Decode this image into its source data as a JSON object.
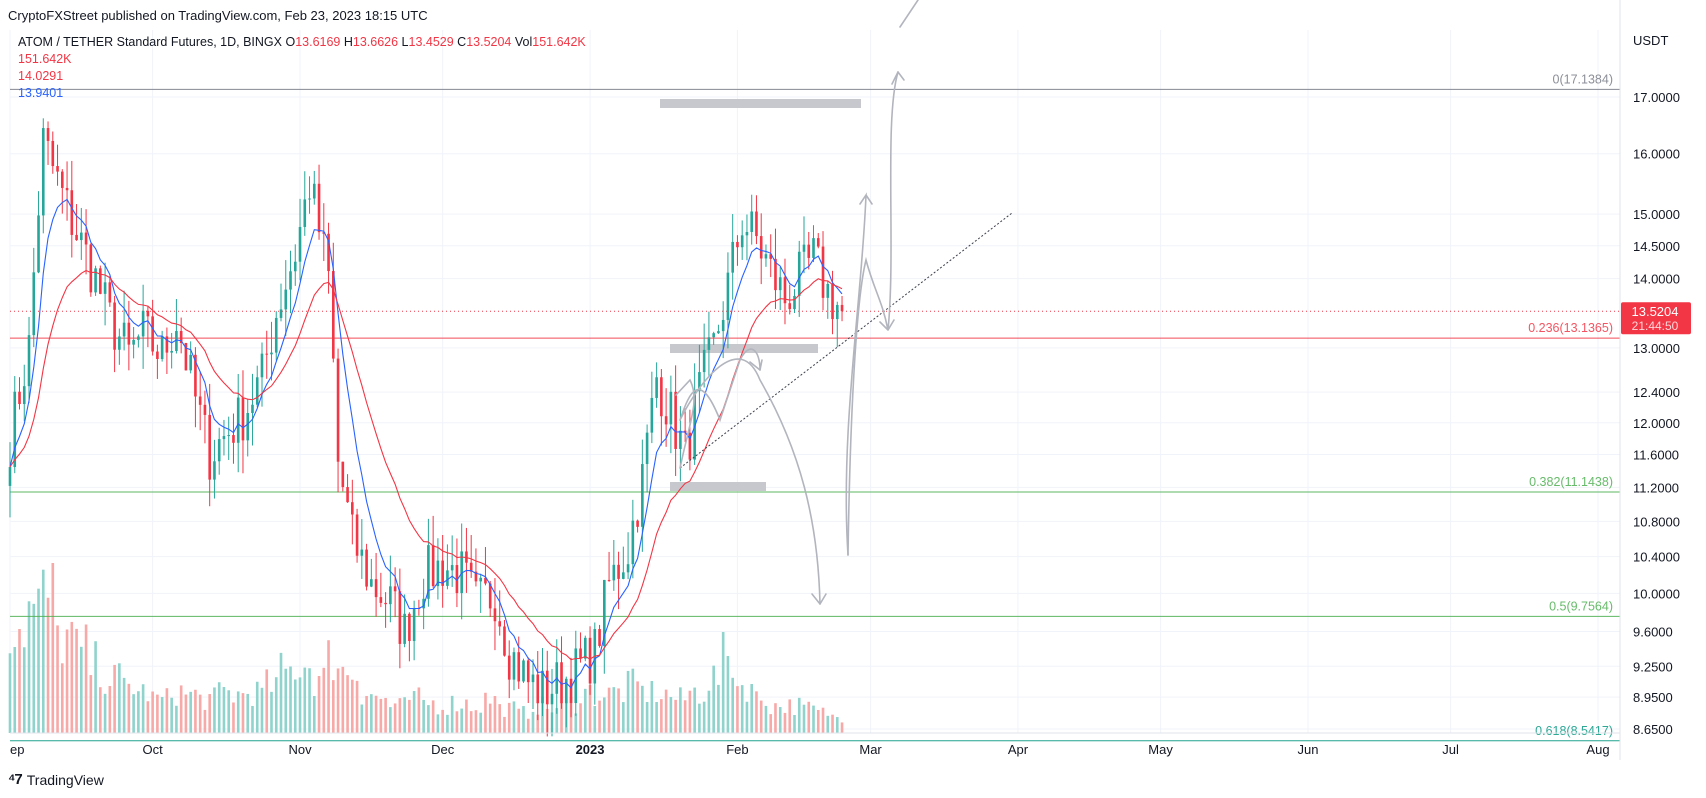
{
  "header": {
    "publisher_line": "CryptoFXStreet published on TradingView.com, Feb 23, 2023 18:15 UTC",
    "symbol": "ATOM / TETHER Standard Futures, 1D, BINGX",
    "ohlc": [
      {
        "k": "O",
        "v": "13.6169"
      },
      {
        "k": "H",
        "v": "13.6626"
      },
      {
        "k": "L",
        "v": "13.4529"
      },
      {
        "k": "C",
        "v": "13.5204"
      },
      {
        "k": "Vol",
        "v": "151.642K"
      }
    ],
    "legend_lines": [
      {
        "text": "151.642K",
        "color": "#f23645"
      },
      {
        "text": "14.0291",
        "color": "#f23645"
      },
      {
        "text": "13.9401",
        "color": "#2962ff"
      }
    ]
  },
  "footer": {
    "brand": "TradingView"
  },
  "colors": {
    "up": "#26a69a",
    "down": "#f23645",
    "vol_up": "#8fd3cc",
    "vol_down": "#f7a9a7",
    "ema_fast": "#2962ff",
    "ema_slow": "#f23645",
    "grid": "#f0f3fa",
    "text": "#131722",
    "fib_red": "#f23645",
    "fib_green": "#4caf50",
    "fib_teal": "#089981",
    "fib_gray": "#787b86",
    "drawing": "#b2b5be",
    "zone": "#c7c8cd"
  },
  "chart_data": {
    "type": "candlestick",
    "x_axis": {
      "labels": [
        "ep",
        "Oct",
        "Nov",
        "Dec",
        "2023",
        "Feb",
        "Mar",
        "Apr",
        "May",
        "Jun",
        "Jul",
        "Aug"
      ],
      "range": [
        "2022-09-01",
        "2023-08-01"
      ]
    },
    "y_axis": {
      "scale": "log",
      "unit_label": "USDT",
      "ticks": [
        17.0,
        16.0,
        15.0,
        14.5,
        14.0,
        13.0,
        12.4,
        12.0,
        11.6,
        11.2,
        10.8,
        10.4,
        10.0,
        9.6,
        9.25,
        8.95,
        8.65
      ],
      "tick_labels": [
        "17.0000",
        "16.0000",
        "15.0000",
        "14.5000",
        "14.0000",
        "13.0000",
        "12.4000",
        "12.0000",
        "11.6000",
        "11.2000",
        "10.8000",
        "10.4000",
        "10.0000",
        "9.6000",
        "9.2500",
        "8.9500",
        "8.6500"
      ],
      "range": [
        8.5,
        17.6
      ]
    },
    "last_price": {
      "value": "13.5204",
      "countdown": "21:44:50"
    },
    "series_close": {
      "name": "ATOM / TETHER Standard Futures",
      "dates": [
        "2022-09-01",
        "2022-09-05",
        "2022-09-08",
        "2022-09-12",
        "2022-09-15",
        "2022-09-19",
        "2022-09-22",
        "2022-09-26",
        "2022-09-29",
        "2022-10-03",
        "2022-10-06",
        "2022-10-10",
        "2022-10-13",
        "2022-10-17",
        "2022-10-20",
        "2022-10-24",
        "2022-10-27",
        "2022-10-31",
        "2022-11-03",
        "2022-11-07",
        "2022-11-09",
        "2022-11-12",
        "2022-11-16",
        "2022-11-20",
        "2022-11-23",
        "2022-11-27",
        "2022-12-01",
        "2022-12-05",
        "2022-12-08",
        "2022-12-12",
        "2022-12-15",
        "2022-12-19",
        "2022-12-22",
        "2022-12-26",
        "2022-12-29",
        "2023-01-02",
        "2023-01-05",
        "2023-01-09",
        "2023-01-12",
        "2023-01-15",
        "2023-01-18",
        "2023-01-21",
        "2023-01-24",
        "2023-01-27",
        "2023-01-30",
        "2023-02-02",
        "2023-02-05",
        "2023-02-08",
        "2023-02-11",
        "2023-02-14",
        "2023-02-17",
        "2023-02-20",
        "2023-02-23"
      ],
      "close": [
        11.8,
        13.0,
        16.2,
        15.3,
        14.7,
        14.0,
        13.4,
        12.9,
        13.2,
        12.9,
        13.4,
        12.3,
        11.6,
        11.9,
        12.1,
        12.6,
        13.5,
        14.4,
        15.5,
        14.0,
        11.5,
        10.6,
        10.1,
        9.9,
        9.6,
        10.2,
        10.3,
        10.2,
        9.9,
        10.0,
        9.4,
        9.1,
        9.0,
        9.1,
        9.2,
        9.4,
        10.1,
        10.5,
        11.3,
        12.6,
        12.1,
        11.6,
        12.4,
        13.0,
        13.9,
        14.9,
        14.6,
        14.1,
        13.7,
        14.0,
        14.3,
        13.8,
        13.52
      ]
    },
    "series_volume": {
      "name": "Vol",
      "unit_label": "K",
      "values_relative": [
        0.8,
        0.9,
        1.0,
        0.7,
        0.6,
        0.5,
        0.4,
        0.35,
        0.3,
        0.25,
        0.3,
        0.28,
        0.25,
        0.3,
        0.28,
        0.3,
        0.35,
        0.45,
        0.5,
        0.4,
        0.55,
        0.45,
        0.3,
        0.25,
        0.2,
        0.25,
        0.22,
        0.2,
        0.22,
        0.2,
        0.25,
        0.18,
        0.15,
        0.2,
        0.18,
        0.22,
        0.3,
        0.28,
        0.3,
        0.35,
        0.3,
        0.28,
        0.25,
        0.3,
        0.4,
        0.55,
        0.35,
        0.25,
        0.2,
        0.2,
        0.18,
        0.15,
        0.12
      ]
    },
    "series_ema": [
      {
        "name": "14.0291",
        "color": "#f23645"
      },
      {
        "name": "13.9401",
        "color": "#2962ff"
      }
    ],
    "fib_levels": [
      {
        "label": "0(17.1384)",
        "value": 17.1384,
        "color": "#787b86"
      },
      {
        "label": "0.236(13.1365)",
        "value": 13.1365,
        "color": "#f23645"
      },
      {
        "label": "0.382(11.1438)",
        "value": 11.1438,
        "color": "#4caf50"
      },
      {
        "label": "0.5(9.7564)",
        "value": 9.7564,
        "color": "#4caf50"
      },
      {
        "label": "0.618(8.5417)",
        "value": 8.5417,
        "color": "#089981"
      }
    ],
    "grid": true,
    "legend_position": "top-left"
  }
}
